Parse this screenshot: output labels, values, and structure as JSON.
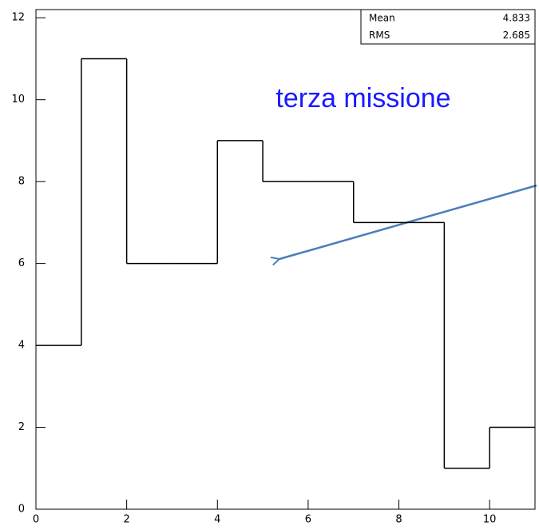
{
  "chart_data": {
    "type": "histogram",
    "bins": [
      0,
      1,
      2,
      3,
      4,
      5,
      6,
      7,
      8,
      9,
      10,
      11
    ],
    "values": [
      4,
      11,
      6,
      6,
      9,
      8,
      8,
      7,
      7,
      1,
      2
    ],
    "color": "#000000",
    "xlim": [
      0,
      11
    ],
    "xticks": [
      0,
      2,
      4,
      6,
      8,
      10
    ],
    "ylim": [
      0,
      12.2
    ],
    "yticks": [
      0,
      2,
      4,
      6,
      8,
      10,
      12
    ],
    "stats": [
      {
        "label": "Mean",
        "value": 4.833
      },
      {
        "label": "RMS",
        "value": 2.685
      }
    ],
    "annotation": "terza missione"
  }
}
